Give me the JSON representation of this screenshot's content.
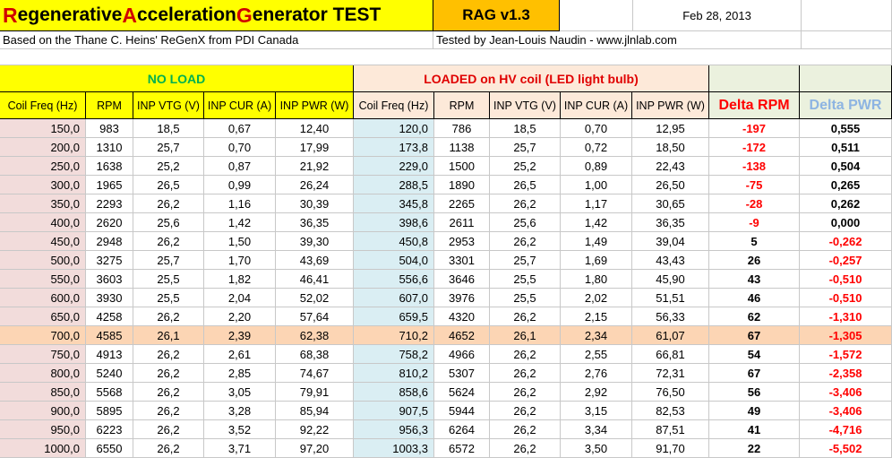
{
  "title": {
    "pre1": "",
    "cap1": "R",
    "rest1": "egenerative ",
    "cap2": "A",
    "rest2": "cceleration ",
    "cap3": "G",
    "rest3": "enerator TEST"
  },
  "version": "RAG v1.3",
  "date": "Feb 28, 2013",
  "subtitle_left": "Based on the Thane C. Heins' ReGenX from PDI Canada",
  "subtitle_right": "Tested by Jean-Louis Naudin - www.jlnlab.com",
  "section_noload": "NO LOAD",
  "section_loaded": "LOADED on HV coil (LED light bulb)",
  "headers": {
    "coil_freq": "Coil Freq (Hz)",
    "rpm": "RPM",
    "inp_vtg": "INP VTG (V)",
    "inp_cur": "INP CUR (A)",
    "inp_pwr": "INP PWR (W)",
    "delta_rpm": "Delta RPM",
    "delta_pwr": "Delta PWR"
  },
  "colors": {
    "title_bg": "#ffff00",
    "title_cap": "#d00000",
    "version_bg": "#ffc000",
    "noload_bg": "#ffff00",
    "noload_text": "#00b050",
    "loaded_bg": "#fde9d9",
    "loaded_text": "#e00000",
    "delta_bg": "#ebf1de",
    "delta_rpm_text": "#ff0000",
    "delta_pwr_text": "#8db4e2",
    "noload_freq_bg": "#f2dcdb",
    "loaded_freq_bg": "#daeef3",
    "highlight_bg": "#fcd5b4",
    "neg": "#ff0000",
    "pos": "#000000"
  },
  "highlight_row": 11,
  "rows": [
    {
      "f1": "150,0",
      "rpm1": "983",
      "v1": "18,5",
      "c1": "0,67",
      "p1": "12,40",
      "f2": "120,0",
      "rpm2": "786",
      "v2": "18,5",
      "c2": "0,70",
      "p2": "12,95",
      "drpm": "-197",
      "dpwr": "0,555"
    },
    {
      "f1": "200,0",
      "rpm1": "1310",
      "v1": "25,7",
      "c1": "0,70",
      "p1": "17,99",
      "f2": "173,8",
      "rpm2": "1138",
      "v2": "25,7",
      "c2": "0,72",
      "p2": "18,50",
      "drpm": "-172",
      "dpwr": "0,511"
    },
    {
      "f1": "250,0",
      "rpm1": "1638",
      "v1": "25,2",
      "c1": "0,87",
      "p1": "21,92",
      "f2": "229,0",
      "rpm2": "1500",
      "v2": "25,2",
      "c2": "0,89",
      "p2": "22,43",
      "drpm": "-138",
      "dpwr": "0,504"
    },
    {
      "f1": "300,0",
      "rpm1": "1965",
      "v1": "26,5",
      "c1": "0,99",
      "p1": "26,24",
      "f2": "288,5",
      "rpm2": "1890",
      "v2": "26,5",
      "c2": "1,00",
      "p2": "26,50",
      "drpm": "-75",
      "dpwr": "0,265"
    },
    {
      "f1": "350,0",
      "rpm1": "2293",
      "v1": "26,2",
      "c1": "1,16",
      "p1": "30,39",
      "f2": "345,8",
      "rpm2": "2265",
      "v2": "26,2",
      "c2": "1,17",
      "p2": "30,65",
      "drpm": "-28",
      "dpwr": "0,262"
    },
    {
      "f1": "400,0",
      "rpm1": "2620",
      "v1": "25,6",
      "c1": "1,42",
      "p1": "36,35",
      "f2": "398,6",
      "rpm2": "2611",
      "v2": "25,6",
      "c2": "1,42",
      "p2": "36,35",
      "drpm": "-9",
      "dpwr": "0,000"
    },
    {
      "f1": "450,0",
      "rpm1": "2948",
      "v1": "26,2",
      "c1": "1,50",
      "p1": "39,30",
      "f2": "450,8",
      "rpm2": "2953",
      "v2": "26,2",
      "c2": "1,49",
      "p2": "39,04",
      "drpm": "5",
      "dpwr": "-0,262"
    },
    {
      "f1": "500,0",
      "rpm1": "3275",
      "v1": "25,7",
      "c1": "1,70",
      "p1": "43,69",
      "f2": "504,0",
      "rpm2": "3301",
      "v2": "25,7",
      "c2": "1,69",
      "p2": "43,43",
      "drpm": "26",
      "dpwr": "-0,257"
    },
    {
      "f1": "550,0",
      "rpm1": "3603",
      "v1": "25,5",
      "c1": "1,82",
      "p1": "46,41",
      "f2": "556,6",
      "rpm2": "3646",
      "v2": "25,5",
      "c2": "1,80",
      "p2": "45,90",
      "drpm": "43",
      "dpwr": "-0,510"
    },
    {
      "f1": "600,0",
      "rpm1": "3930",
      "v1": "25,5",
      "c1": "2,04",
      "p1": "52,02",
      "f2": "607,0",
      "rpm2": "3976",
      "v2": "25,5",
      "c2": "2,02",
      "p2": "51,51",
      "drpm": "46",
      "dpwr": "-0,510"
    },
    {
      "f1": "650,0",
      "rpm1": "4258",
      "v1": "26,2",
      "c1": "2,20",
      "p1": "57,64",
      "f2": "659,5",
      "rpm2": "4320",
      "v2": "26,2",
      "c2": "2,15",
      "p2": "56,33",
      "drpm": "62",
      "dpwr": "-1,310"
    },
    {
      "f1": "700,0",
      "rpm1": "4585",
      "v1": "26,1",
      "c1": "2,39",
      "p1": "62,38",
      "f2": "710,2",
      "rpm2": "4652",
      "v2": "26,1",
      "c2": "2,34",
      "p2": "61,07",
      "drpm": "67",
      "dpwr": "-1,305"
    },
    {
      "f1": "750,0",
      "rpm1": "4913",
      "v1": "26,2",
      "c1": "2,61",
      "p1": "68,38",
      "f2": "758,2",
      "rpm2": "4966",
      "v2": "26,2",
      "c2": "2,55",
      "p2": "66,81",
      "drpm": "54",
      "dpwr": "-1,572"
    },
    {
      "f1": "800,0",
      "rpm1": "5240",
      "v1": "26,2",
      "c1": "2,85",
      "p1": "74,67",
      "f2": "810,2",
      "rpm2": "5307",
      "v2": "26,2",
      "c2": "2,76",
      "p2": "72,31",
      "drpm": "67",
      "dpwr": "-2,358"
    },
    {
      "f1": "850,0",
      "rpm1": "5568",
      "v1": "26,2",
      "c1": "3,05",
      "p1": "79,91",
      "f2": "858,6",
      "rpm2": "5624",
      "v2": "26,2",
      "c2": "2,92",
      "p2": "76,50",
      "drpm": "56",
      "dpwr": "-3,406"
    },
    {
      "f1": "900,0",
      "rpm1": "5895",
      "v1": "26,2",
      "c1": "3,28",
      "p1": "85,94",
      "f2": "907,5",
      "rpm2": "5944",
      "v2": "26,2",
      "c2": "3,15",
      "p2": "82,53",
      "drpm": "49",
      "dpwr": "-3,406"
    },
    {
      "f1": "950,0",
      "rpm1": "6223",
      "v1": "26,2",
      "c1": "3,52",
      "p1": "92,22",
      "f2": "956,3",
      "rpm2": "6264",
      "v2": "26,2",
      "c2": "3,34",
      "p2": "87,51",
      "drpm": "41",
      "dpwr": "-4,716"
    },
    {
      "f1": "1000,0",
      "rpm1": "6550",
      "v1": "26,2",
      "c1": "3,71",
      "p1": "97,20",
      "f2": "1003,3",
      "rpm2": "6572",
      "v2": "26,2",
      "c2": "3,50",
      "p2": "91,70",
      "drpm": "22",
      "dpwr": "-5,502"
    }
  ]
}
